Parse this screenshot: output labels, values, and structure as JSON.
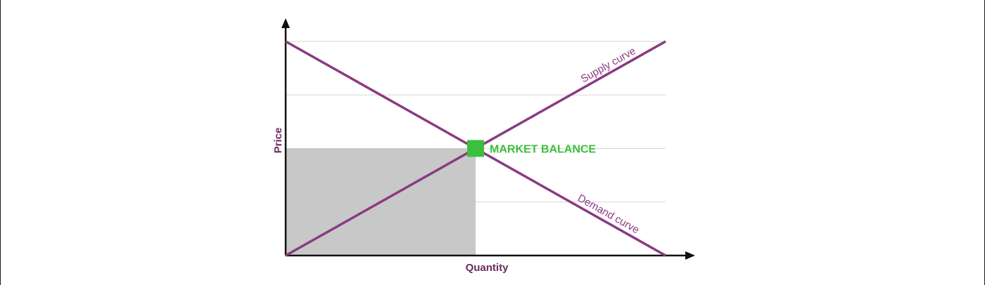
{
  "colors": {
    "curve": "#8b3a83",
    "axis_title": "#6b2a5e",
    "balance": "#3cbf3c",
    "area": "#c8c8c8",
    "grid": "#d6d6d6",
    "axis": "#111111"
  },
  "chart_data": {
    "type": "line",
    "title": "",
    "xlabel": "Quantity",
    "ylabel": "Price",
    "xlim": [
      0,
      1
    ],
    "ylim": [
      0,
      1
    ],
    "grid": "horizontal",
    "gridlines_y": [
      0.25,
      0.5,
      0.75,
      1.0
    ],
    "series": [
      {
        "name": "Supply curve",
        "x": [
          0,
          1
        ],
        "y": [
          0,
          1
        ]
      },
      {
        "name": "Demand curve",
        "x": [
          0,
          1
        ],
        "y": [
          1,
          0
        ]
      }
    ],
    "equilibrium": {
      "x": 0.5,
      "y": 0.5,
      "label": "MARKET BALANCE"
    },
    "shaded_area": {
      "x": [
        0,
        0.5
      ],
      "y": [
        0,
        0.5
      ]
    }
  }
}
